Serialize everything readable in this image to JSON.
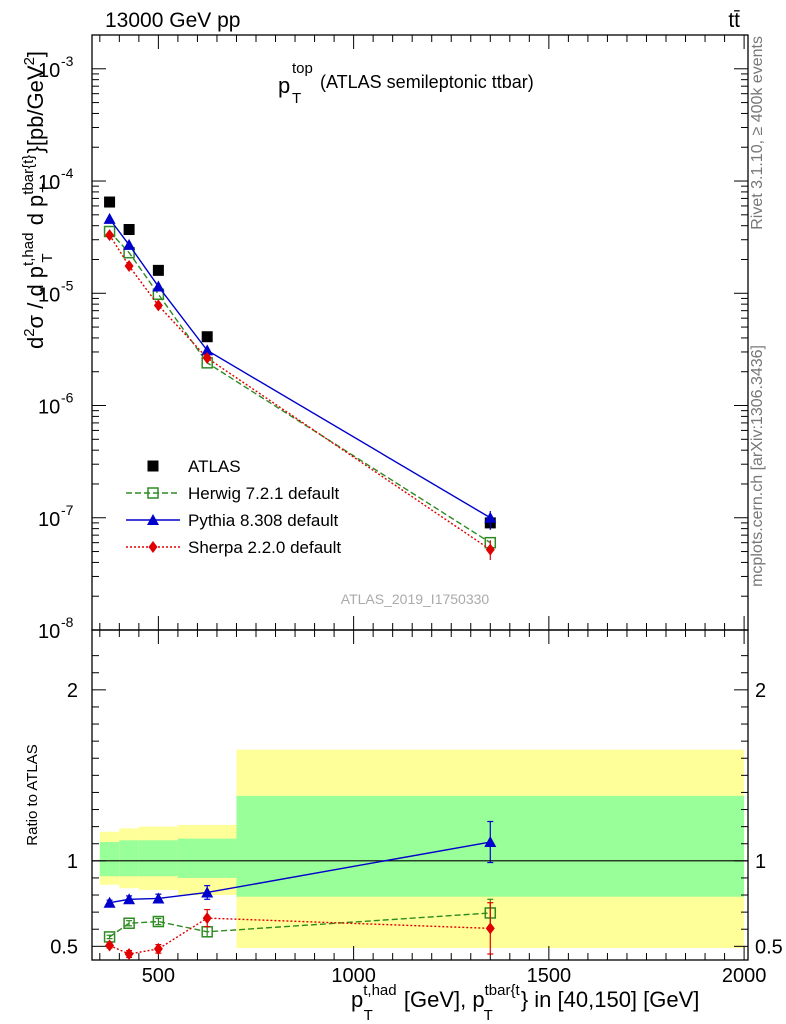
{
  "header": {
    "energy_label": "13000 GeV pp",
    "process_label": "tt̄"
  },
  "side": {
    "rivet_label": "Rivet 3.1.10, ≥ 400k events",
    "mcplots_label": "mcplots.cern.ch [arXiv:1306.3436]"
  },
  "analysis_id": "ATLAS_2019_I1750330",
  "chart_data": [
    {
      "type": "scatter",
      "panel": "main",
      "title_main": "p",
      "title_sup": "top",
      "title_sub": "T",
      "title_suffix": "(ATLAS semileptonic ttbar)",
      "ylabel": "d²σ / d p_T^{t,had} d p_T^{tbar{t}} [pb/GeV²]",
      "yscale": "log",
      "ylim": [
        1e-08,
        0.002
      ],
      "xlim": [
        330,
        2010
      ],
      "y_ticks": [
        {
          "value": 0.001,
          "label": "10",
          "exp": "-3"
        },
        {
          "value": 0.0001,
          "label": "10",
          "exp": "-4"
        },
        {
          "value": 1e-05,
          "label": "10",
          "exp": "-5"
        },
        {
          "value": 1e-06,
          "label": "10",
          "exp": "-6"
        },
        {
          "value": 1e-07,
          "label": "10",
          "exp": "-7"
        },
        {
          "value": 1e-08,
          "label": "10",
          "exp": "-8"
        }
      ],
      "series": [
        {
          "name": "ATLAS",
          "color": "#000000",
          "marker": "square-filled",
          "x": [
            375,
            425,
            500,
            625,
            1350
          ],
          "y": [
            6.5e-05,
            3.7e-05,
            1.6e-05,
            4.1e-06,
            9e-08
          ]
        },
        {
          "name": "Herwig 7.2.1 default",
          "color": "#2e8b22",
          "marker": "square-open",
          "line": "dashed",
          "x": [
            375,
            425,
            500,
            625,
            1350
          ],
          "y": [
            3.55e-05,
            2.3e-05,
            9.8e-06,
            2.4e-06,
            6e-08
          ]
        },
        {
          "name": "Pythia 8.308 default",
          "color": "#0000cc",
          "marker": "triangle",
          "line": "solid",
          "x": [
            375,
            425,
            500,
            625,
            1350
          ],
          "y": [
            4.6e-05,
            2.7e-05,
            1.15e-05,
            3.1e-06,
            1e-07
          ]
        },
        {
          "name": "Sherpa 2.2.0 default",
          "color": "#e00000",
          "marker": "diamond",
          "line": "dotted",
          "x": [
            375,
            425,
            500,
            625,
            1350
          ],
          "y": [
            3.3e-05,
            1.75e-05,
            7.8e-06,
            2.65e-06,
            5.2e-08
          ]
        }
      ]
    },
    {
      "type": "scatter",
      "panel": "ratio",
      "ylabel": "Ratio to ATLAS",
      "xlabel": "p_T^{t,had} [GeV], p_T^{tbar{t}} in [40,150] [GeV]",
      "ylim": [
        0.42,
        2.35
      ],
      "xlim": [
        330,
        2010
      ],
      "x_ticks": [
        500,
        1000,
        1500,
        2000
      ],
      "y_ticks": [
        {
          "value": 0.5,
          "label": "0.5"
        },
        {
          "value": 1,
          "label": "1"
        },
        {
          "value": 2,
          "label": "2"
        }
      ],
      "bands": [
        {
          "x0": 350,
          "x1": 400,
          "stat": [
            0.91,
            1.11
          ],
          "total": [
            0.86,
            1.17
          ]
        },
        {
          "x0": 400,
          "x1": 450,
          "stat": [
            0.91,
            1.12
          ],
          "total": [
            0.84,
            1.19
          ]
        },
        {
          "x0": 450,
          "x1": 550,
          "stat": [
            0.91,
            1.12
          ],
          "total": [
            0.83,
            1.2
          ]
        },
        {
          "x0": 550,
          "x1": 700,
          "stat": [
            0.9,
            1.13
          ],
          "total": [
            0.8,
            1.21
          ]
        },
        {
          "x0": 700,
          "x1": 2000,
          "stat": [
            0.79,
            1.38
          ],
          "total": [
            0.49,
            1.65
          ]
        }
      ],
      "band_colors": {
        "stat": "#99ff99",
        "total": "#ffff99"
      },
      "series": [
        {
          "name": "Herwig 7.2.1 default",
          "color": "#2e8b22",
          "marker": "square-open",
          "line": "dashed",
          "x": [
            375,
            425,
            500,
            625,
            1350
          ],
          "y": [
            0.555,
            0.635,
            0.645,
            0.585,
            0.695
          ],
          "err": [
            0.01,
            0.015,
            0.018,
            0.03,
            0.08
          ]
        },
        {
          "name": "Pythia 8.308 default",
          "color": "#0000cc",
          "marker": "triangle",
          "line": "solid",
          "x": [
            375,
            425,
            500,
            625,
            1350
          ],
          "y": [
            0.755,
            0.775,
            0.78,
            0.815,
            1.11
          ],
          "err": [
            0.015,
            0.02,
            0.025,
            0.04,
            0.12
          ]
        },
        {
          "name": "Sherpa 2.2.0 default",
          "color": "#e00000",
          "marker": "diamond",
          "line": "dotted",
          "x": [
            375,
            425,
            500,
            625,
            1350
          ],
          "y": [
            0.505,
            0.455,
            0.485,
            0.665,
            0.605
          ],
          "err": [
            0.015,
            0.02,
            0.025,
            0.05,
            0.15
          ]
        }
      ]
    }
  ]
}
